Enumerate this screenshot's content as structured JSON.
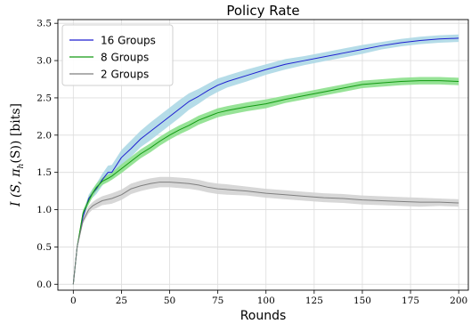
{
  "chart_data": {
    "type": "line",
    "title": "Policy Rate",
    "xlabel": "Rounds",
    "ylabel": "I (S, π_h(S)) [bits]",
    "ylabel_parts": {
      "main": "I (S, π",
      "sub": "h",
      "rest": "(S)) [bits]"
    },
    "xlim": [
      -8,
      205
    ],
    "ylim": [
      -0.08,
      3.55
    ],
    "xticks": [
      0,
      25,
      50,
      75,
      100,
      125,
      150,
      175,
      200
    ],
    "xtick_labels": [
      "0",
      "25",
      "50",
      "75",
      "100",
      "125",
      "150",
      "175",
      "200"
    ],
    "yticks": [
      0.0,
      0.5,
      1.0,
      1.5,
      2.0,
      2.5,
      3.0,
      3.5
    ],
    "ytick_labels": [
      "0.0",
      "0.5",
      "1.0",
      "1.5",
      "2.0",
      "2.5",
      "3.0",
      "3.5"
    ],
    "grid": true,
    "legend_position": "top-left",
    "series": [
      {
        "name": "16 Groups",
        "line_color": "#1f1fd0",
        "band_color": "#add8e6",
        "x": [
          0,
          2,
          5,
          8,
          10,
          12,
          15,
          18,
          20,
          25,
          30,
          35,
          40,
          45,
          50,
          55,
          60,
          65,
          70,
          75,
          80,
          90,
          100,
          110,
          120,
          130,
          140,
          150,
          160,
          170,
          180,
          190,
          200
        ],
        "y": [
          0.0,
          0.5,
          0.9,
          1.15,
          1.22,
          1.28,
          1.4,
          1.5,
          1.5,
          1.7,
          1.82,
          1.95,
          2.05,
          2.15,
          2.25,
          2.35,
          2.45,
          2.52,
          2.6,
          2.67,
          2.72,
          2.8,
          2.88,
          2.95,
          3.0,
          3.05,
          3.1,
          3.15,
          3.2,
          3.24,
          3.27,
          3.29,
          3.3
        ],
        "band": [
          0.0,
          0.02,
          0.04,
          0.05,
          0.06,
          0.07,
          0.08,
          0.09,
          0.1,
          0.1,
          0.11,
          0.11,
          0.12,
          0.12,
          0.12,
          0.12,
          0.11,
          0.1,
          0.09,
          0.09,
          0.08,
          0.08,
          0.07,
          0.07,
          0.06,
          0.06,
          0.06,
          0.06,
          0.05,
          0.05,
          0.05,
          0.05,
          0.05
        ]
      },
      {
        "name": "8 Groups",
        "line_color": "#139a13",
        "band_color": "#8ce08c",
        "x": [
          0,
          2,
          5,
          8,
          10,
          12,
          15,
          18,
          20,
          25,
          30,
          35,
          40,
          45,
          50,
          55,
          60,
          65,
          70,
          75,
          80,
          90,
          100,
          110,
          120,
          130,
          140,
          150,
          160,
          170,
          180,
          190,
          200
        ],
        "y": [
          0.0,
          0.5,
          0.95,
          1.12,
          1.22,
          1.3,
          1.38,
          1.42,
          1.45,
          1.55,
          1.65,
          1.75,
          1.83,
          1.92,
          2.0,
          2.07,
          2.13,
          2.2,
          2.25,
          2.3,
          2.33,
          2.38,
          2.42,
          2.48,
          2.53,
          2.58,
          2.63,
          2.68,
          2.7,
          2.72,
          2.73,
          2.73,
          2.72
        ],
        "band": [
          0.0,
          0.02,
          0.04,
          0.05,
          0.05,
          0.05,
          0.05,
          0.05,
          0.05,
          0.06,
          0.06,
          0.06,
          0.06,
          0.06,
          0.06,
          0.06,
          0.06,
          0.06,
          0.06,
          0.06,
          0.06,
          0.06,
          0.06,
          0.05,
          0.05,
          0.05,
          0.05,
          0.05,
          0.05,
          0.05,
          0.05,
          0.05,
          0.05
        ]
      },
      {
        "name": "2 Groups",
        "line_color": "#7f7f7f",
        "band_color": "#d3d3d3",
        "x": [
          0,
          2,
          5,
          8,
          10,
          12,
          15,
          20,
          25,
          30,
          35,
          40,
          45,
          50,
          55,
          60,
          65,
          70,
          75,
          80,
          90,
          100,
          110,
          120,
          130,
          140,
          150,
          160,
          170,
          180,
          190,
          200
        ],
        "y": [
          0.0,
          0.5,
          0.85,
          1.0,
          1.05,
          1.08,
          1.12,
          1.15,
          1.2,
          1.28,
          1.32,
          1.35,
          1.37,
          1.37,
          1.36,
          1.35,
          1.33,
          1.3,
          1.28,
          1.27,
          1.25,
          1.22,
          1.2,
          1.18,
          1.16,
          1.15,
          1.13,
          1.12,
          1.11,
          1.1,
          1.1,
          1.09
        ],
        "band": [
          0.0,
          0.02,
          0.04,
          0.05,
          0.05,
          0.06,
          0.06,
          0.07,
          0.07,
          0.07,
          0.07,
          0.07,
          0.07,
          0.07,
          0.07,
          0.07,
          0.07,
          0.07,
          0.07,
          0.07,
          0.06,
          0.06,
          0.06,
          0.06,
          0.06,
          0.06,
          0.06,
          0.06,
          0.06,
          0.06,
          0.05,
          0.05
        ]
      }
    ]
  }
}
